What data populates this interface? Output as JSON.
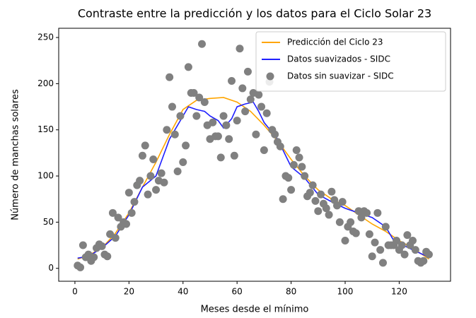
{
  "chart_data": {
    "type": "line",
    "title": "Contraste entre la predicción y los datos para el Ciclo Solar 23",
    "x_label": "Meses desde el mínimo",
    "y_label": "Número de manchas solares",
    "xlim": [
      -6,
      139
    ],
    "ylim": [
      -14,
      260
    ],
    "xticks": [
      0,
      20,
      40,
      60,
      80,
      100,
      120
    ],
    "yticks": [
      0,
      50,
      100,
      150,
      200,
      250
    ],
    "legend": "upper right",
    "series": [
      {
        "name": "Predicción del Ciclo 23",
        "type": "line",
        "color": "#ffa500",
        "x": [
          1,
          5,
          10,
          15,
          20,
          25,
          30,
          35,
          40,
          45,
          50,
          55,
          60,
          65,
          70,
          75,
          80,
          85,
          90,
          95,
          100,
          105,
          110,
          115,
          120,
          125,
          131
        ],
        "values": [
          10,
          14,
          22,
          38,
          60,
          88,
          115,
          145,
          172,
          182,
          184,
          185,
          180,
          170,
          155,
          138,
          118,
          100,
          85,
          75,
          68,
          58,
          48,
          40,
          30,
          22,
          10
        ]
      },
      {
        "name": "Datos suavizados - SIDC",
        "type": "line",
        "color": "#1f1fff",
        "x": [
          1,
          5,
          10,
          15,
          20,
          25,
          30,
          35,
          40,
          42,
          45,
          48,
          50,
          53,
          55,
          58,
          60,
          63,
          66,
          68,
          70,
          75,
          80,
          85,
          90,
          95,
          100,
          105,
          110,
          115,
          118,
          120,
          125,
          131
        ],
        "values": [
          11,
          13,
          22,
          35,
          58,
          88,
          100,
          140,
          165,
          175,
          172,
          170,
          165,
          160,
          152,
          162,
          175,
          178,
          180,
          170,
          158,
          140,
          110,
          98,
          80,
          72,
          65,
          60,
          55,
          45,
          30,
          27,
          20,
          12
        ]
      },
      {
        "name": "Datos sin suavizar - SIDC",
        "type": "scatter",
        "color": "#808080",
        "x": [
          1,
          2,
          3,
          4,
          5,
          6,
          7,
          8,
          9,
          10,
          11,
          12,
          13,
          14,
          15,
          16,
          17,
          18,
          19,
          20,
          21,
          22,
          23,
          24,
          25,
          26,
          27,
          28,
          29,
          30,
          31,
          32,
          33,
          34,
          35,
          36,
          37,
          38,
          39,
          40,
          41,
          42,
          43,
          44,
          45,
          46,
          47,
          48,
          49,
          50,
          51,
          52,
          53,
          54,
          55,
          56,
          57,
          58,
          59,
          60,
          61,
          62,
          63,
          64,
          65,
          66,
          67,
          68,
          69,
          70,
          71,
          72,
          73,
          74,
          75,
          76,
          77,
          78,
          79,
          80,
          81,
          82,
          83,
          84,
          85,
          86,
          87,
          88,
          89,
          90,
          91,
          92,
          93,
          94,
          95,
          96,
          97,
          98,
          99,
          100,
          101,
          102,
          103,
          104,
          105,
          106,
          107,
          108,
          109,
          110,
          111,
          112,
          113,
          114,
          115,
          116,
          117,
          118,
          119,
          120,
          121,
          122,
          123,
          124,
          125,
          126,
          127,
          128,
          129,
          130,
          131
        ],
        "values": [
          3,
          1,
          25,
          12,
          15,
          8,
          12,
          22,
          26,
          24,
          15,
          13,
          37,
          60,
          33,
          55,
          45,
          50,
          48,
          82,
          60,
          72,
          90,
          95,
          122,
          133,
          80,
          100,
          118,
          85,
          95,
          103,
          93,
          150,
          207,
          175,
          145,
          105,
          165,
          115,
          133,
          218,
          190,
          190,
          165,
          185,
          243,
          180,
          155,
          140,
          158,
          143,
          143,
          120,
          165,
          155,
          140,
          203,
          122,
          160,
          238,
          195,
          170,
          213,
          183,
          190,
          145,
          188,
          175,
          128,
          168,
          202,
          150,
          145,
          137,
          132,
          75,
          100,
          98,
          85,
          112,
          128,
          120,
          110,
          100,
          78,
          82,
          90,
          73,
          62,
          80,
          70,
          65,
          58,
          83,
          74,
          68,
          50,
          72,
          30,
          45,
          50,
          40,
          38,
          62,
          55,
          62,
          60,
          37,
          13,
          28,
          60,
          20,
          6,
          45,
          25,
          25,
          25,
          30,
          20,
          25,
          15,
          36,
          25,
          30,
          20,
          8,
          6,
          8,
          18,
          15
        ]
      }
    ]
  }
}
